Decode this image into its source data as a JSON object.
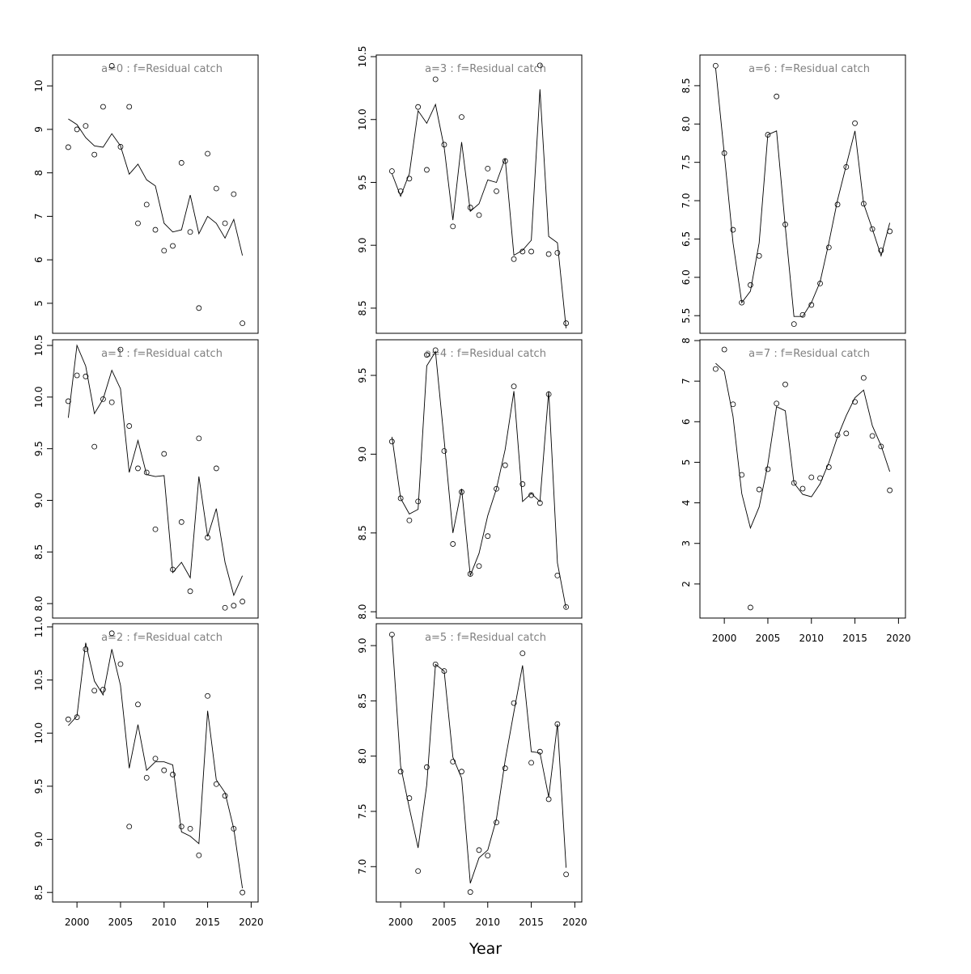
{
  "figure": {
    "xlabel": "Year",
    "line_color": "#000000",
    "title_color": "#808080"
  },
  "chart_data": [
    {
      "type": "line",
      "title": "a=0  :  f=Residual catch",
      "xlim": [
        1997.2,
        2020.8
      ],
      "ylim": [
        4.31,
        10.71
      ],
      "yticks": [
        5,
        6,
        7,
        8,
        9,
        10
      ],
      "x": [
        1999,
        2000,
        2001,
        2002,
        2003,
        2004,
        2005,
        2006,
        2007,
        2008,
        2009,
        2010,
        2011,
        2012,
        2013,
        2014,
        2015,
        2016,
        2017,
        2018,
        2019
      ],
      "observed": [
        8.59,
        9.0,
        9.08,
        8.42,
        9.52,
        10.46,
        8.6,
        9.52,
        6.84,
        7.27,
        6.69,
        6.21,
        6.32,
        8.23,
        6.64,
        4.89,
        8.44,
        7.64,
        6.84,
        7.51,
        4.54
      ],
      "fitted": [
        9.24,
        9.11,
        8.81,
        8.62,
        8.59,
        8.9,
        8.62,
        7.97,
        8.2,
        7.84,
        7.7,
        6.84,
        6.64,
        6.69,
        7.49,
        6.6,
        7.0,
        6.84,
        6.5,
        6.93,
        6.1
      ]
    },
    {
      "type": "line",
      "title": "a=1  :  f=Residual catch",
      "xlim": [
        1997.2,
        2020.8
      ],
      "ylim": [
        7.86,
        10.555
      ],
      "yticks": [
        8.0,
        8.5,
        9.0,
        9.5,
        10.0,
        10.5
      ],
      "x": [
        1999,
        2000,
        2001,
        2002,
        2003,
        2004,
        2005,
        2006,
        2007,
        2008,
        2009,
        2010,
        2011,
        2012,
        2013,
        2014,
        2015,
        2016,
        2017,
        2018,
        2019
      ],
      "observed": [
        9.96,
        10.21,
        10.2,
        9.52,
        9.98,
        9.95,
        10.46,
        9.72,
        9.31,
        9.27,
        8.72,
        9.45,
        8.33,
        8.79,
        8.12,
        9.6,
        8.64,
        9.31,
        7.96,
        7.98,
        8.02
      ],
      "fitted": [
        9.8,
        10.5,
        10.3,
        9.84,
        9.98,
        10.26,
        10.08,
        9.27,
        9.58,
        9.25,
        9.23,
        9.24,
        8.3,
        8.4,
        8.25,
        9.23,
        8.65,
        8.92,
        8.4,
        8.08,
        8.27
      ]
    },
    {
      "type": "line",
      "title": "a=2  :  f=Residual catch",
      "xlim": [
        1997.2,
        2020.8
      ],
      "ylim": [
        8.41,
        11.03
      ],
      "yticks": [
        8.5,
        9.0,
        9.5,
        10.0,
        10.5,
        11.0
      ],
      "xticks": [
        2000,
        2005,
        2010,
        2015,
        2020
      ],
      "x": [
        1999,
        2000,
        2001,
        2002,
        2003,
        2004,
        2005,
        2006,
        2007,
        2008,
        2009,
        2010,
        2011,
        2012,
        2013,
        2014,
        2015,
        2016,
        2017,
        2018,
        2019
      ],
      "observed": [
        10.13,
        10.15,
        10.79,
        10.4,
        10.41,
        10.94,
        10.65,
        9.12,
        10.27,
        9.58,
        9.76,
        9.65,
        9.61,
        9.12,
        9.1,
        8.85,
        10.35,
        9.52,
        9.41,
        9.1,
        8.5
      ],
      "fitted": [
        10.07,
        10.16,
        10.85,
        10.49,
        10.36,
        10.79,
        10.45,
        9.67,
        10.08,
        9.65,
        9.73,
        9.73,
        9.7,
        9.07,
        9.03,
        8.96,
        10.21,
        9.56,
        9.44,
        9.1,
        8.54
      ]
    },
    {
      "type": "line",
      "title": "a=3  :  f=Residual catch",
      "xlim": [
        1997.2,
        2020.8
      ],
      "ylim": [
        8.3,
        10.513
      ],
      "yticks": [
        8.5,
        9.0,
        9.5,
        10.0,
        10.5
      ],
      "x": [
        1999,
        2000,
        2001,
        2002,
        2003,
        2004,
        2005,
        2006,
        2007,
        2008,
        2009,
        2010,
        2011,
        2012,
        2013,
        2014,
        2015,
        2016,
        2017,
        2018,
        2019
      ],
      "observed": [
        9.59,
        9.43,
        9.53,
        10.1,
        9.6,
        10.32,
        9.8,
        9.15,
        10.02,
        9.3,
        9.24,
        9.61,
        9.43,
        9.67,
        8.89,
        8.95,
        8.95,
        10.43,
        8.93,
        8.94,
        8.38
      ],
      "fitted": [
        9.57,
        9.39,
        9.57,
        10.07,
        9.97,
        10.12,
        9.78,
        9.2,
        9.82,
        9.27,
        9.33,
        9.52,
        9.5,
        9.69,
        8.92,
        8.96,
        9.04,
        10.24,
        9.07,
        9.02,
        8.34
      ]
    },
    {
      "type": "line",
      "title": "a=4  :  f=Residual catch",
      "xlim": [
        1997.2,
        2020.8
      ],
      "ylim": [
        7.96,
        9.726
      ],
      "yticks": [
        8.0,
        8.5,
        9.0,
        9.5
      ],
      "x": [
        1999,
        2000,
        2001,
        2002,
        2003,
        2004,
        2005,
        2006,
        2007,
        2008,
        2009,
        2010,
        2011,
        2012,
        2013,
        2014,
        2015,
        2016,
        2017,
        2018,
        2019
      ],
      "observed": [
        9.08,
        8.72,
        8.58,
        8.7,
        9.63,
        9.66,
        9.02,
        8.43,
        8.76,
        8.24,
        8.29,
        8.48,
        8.78,
        8.93,
        9.43,
        8.81,
        8.74,
        8.69,
        9.38,
        8.23,
        8.03
      ],
      "fitted": [
        9.11,
        8.72,
        8.62,
        8.65,
        9.56,
        9.65,
        9.09,
        8.5,
        8.78,
        8.23,
        8.37,
        8.61,
        8.78,
        9.03,
        9.4,
        8.7,
        8.75,
        8.7,
        9.4,
        8.31,
        8.02
      ]
    },
    {
      "type": "line",
      "title": "a=5  :  f=Residual catch",
      "xlim": [
        1997.2,
        2020.8
      ],
      "ylim": [
        6.68,
        9.198
      ],
      "yticks": [
        7.0,
        7.5,
        8.0,
        8.5,
        9.0
      ],
      "xticks": [
        2000,
        2005,
        2010,
        2015,
        2020
      ],
      "x": [
        1999,
        2000,
        2001,
        2002,
        2003,
        2004,
        2005,
        2006,
        2007,
        2008,
        2009,
        2010,
        2011,
        2012,
        2013,
        2014,
        2015,
        2016,
        2017,
        2018,
        2019
      ],
      "observed": [
        9.1,
        7.86,
        7.62,
        6.96,
        7.9,
        8.83,
        8.77,
        7.95,
        7.86,
        6.77,
        7.15,
        7.1,
        7.4,
        7.89,
        8.48,
        8.93,
        7.94,
        8.04,
        7.61,
        8.29,
        6.93
      ],
      "fitted": [
        9.09,
        7.91,
        7.53,
        7.17,
        7.74,
        8.83,
        8.77,
        7.99,
        7.8,
        6.85,
        7.08,
        7.15,
        7.43,
        7.96,
        8.4,
        8.82,
        8.04,
        8.03,
        7.63,
        8.29,
        6.99
      ]
    },
    {
      "type": "line",
      "title": "a=6  :  f=Residual catch",
      "xlim": [
        1997.2,
        2020.8
      ],
      "ylim": [
        5.27,
        8.9
      ],
      "yticks": [
        5.5,
        6.0,
        6.5,
        7.0,
        7.5,
        8.0,
        8.5
      ],
      "x": [
        1999,
        2000,
        2001,
        2002,
        2003,
        2004,
        2005,
        2006,
        2007,
        2008,
        2009,
        2010,
        2011,
        2012,
        2013,
        2014,
        2015,
        2016,
        2017,
        2018,
        2019
      ],
      "observed": [
        8.76,
        7.62,
        6.62,
        5.67,
        5.9,
        6.28,
        7.86,
        8.36,
        6.69,
        5.39,
        5.51,
        5.64,
        5.92,
        6.39,
        6.95,
        7.44,
        8.01,
        6.96,
        6.63,
        6.35,
        6.6
      ],
      "fitted": [
        8.73,
        7.61,
        6.45,
        5.67,
        5.82,
        6.45,
        7.86,
        7.91,
        6.66,
        5.49,
        5.49,
        5.67,
        5.94,
        6.45,
        7.01,
        7.46,
        7.91,
        6.96,
        6.63,
        6.28,
        6.71
      ]
    },
    {
      "type": "line",
      "title": "a=7  :  f=Residual catch",
      "xlim": [
        1997.2,
        2020.8
      ],
      "ylim": [
        1.16,
        8.02
      ],
      "yticks": [
        2,
        3,
        4,
        5,
        6,
        7,
        8
      ],
      "xticks": [
        2000,
        2005,
        2010,
        2015,
        2020
      ],
      "x": [
        1999,
        2000,
        2001,
        2002,
        2003,
        2004,
        2005,
        2006,
        2007,
        2008,
        2009,
        2010,
        2011,
        2012,
        2013,
        2014,
        2015,
        2016,
        2017,
        2018,
        2019
      ],
      "observed": [
        7.3,
        7.78,
        6.43,
        4.69,
        1.42,
        4.33,
        4.83,
        6.45,
        6.92,
        4.49,
        4.35,
        4.63,
        4.61,
        4.88,
        5.67,
        5.71,
        6.49,
        7.08,
        5.65,
        5.39,
        4.31
      ],
      "fitted": [
        7.44,
        7.24,
        6.13,
        4.23,
        3.38,
        3.9,
        4.95,
        6.37,
        6.27,
        4.49,
        4.21,
        4.15,
        4.47,
        4.99,
        5.63,
        6.15,
        6.59,
        6.78,
        5.9,
        5.41,
        4.77
      ]
    }
  ]
}
